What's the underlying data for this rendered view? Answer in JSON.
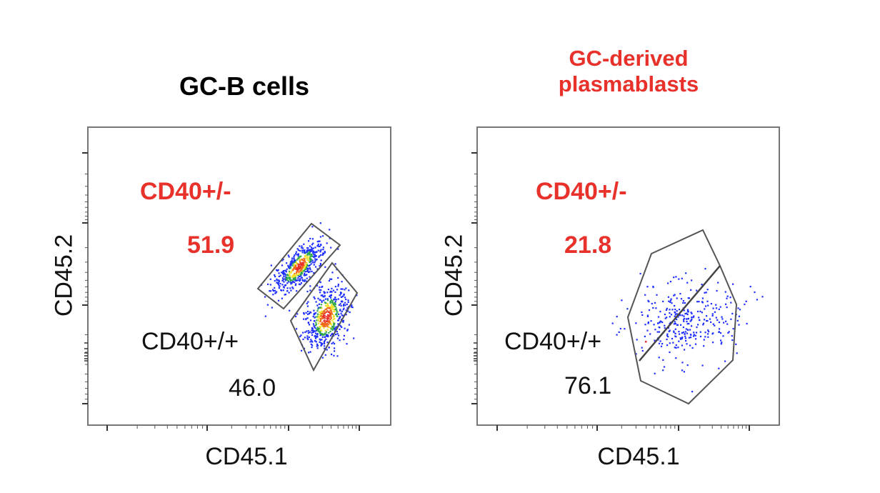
{
  "chart_data": [
    {
      "type": "scatter",
      "title": "GC-B cells",
      "title_color": "#000000",
      "xlabel": "CD45.1",
      "ylabel": "CD45.2",
      "gates": [
        {
          "name": "CD40+/-",
          "percent_label": "51.9",
          "color": "#e8312a"
        },
        {
          "name": "CD40+/+",
          "percent_label": "46.0",
          "color": "#111111"
        }
      ],
      "point_color_scale": [
        "#1f2fff",
        "#2ea84a",
        "#f2e12a",
        "#f06a1c",
        "#e8312a"
      ]
    },
    {
      "type": "scatter",
      "title": "GC-derived plasmablasts",
      "title_color": "#e8312a",
      "xlabel": "CD45.1",
      "ylabel": "CD45.2",
      "gates": [
        {
          "name": "CD40+/-",
          "percent_label": "21.8",
          "color": "#e8312a"
        },
        {
          "name": "CD40+/+",
          "percent_label": "76.1",
          "color": "#111111"
        }
      ],
      "point_color_scale": [
        "#1f2fff",
        "#e8312a"
      ]
    }
  ]
}
